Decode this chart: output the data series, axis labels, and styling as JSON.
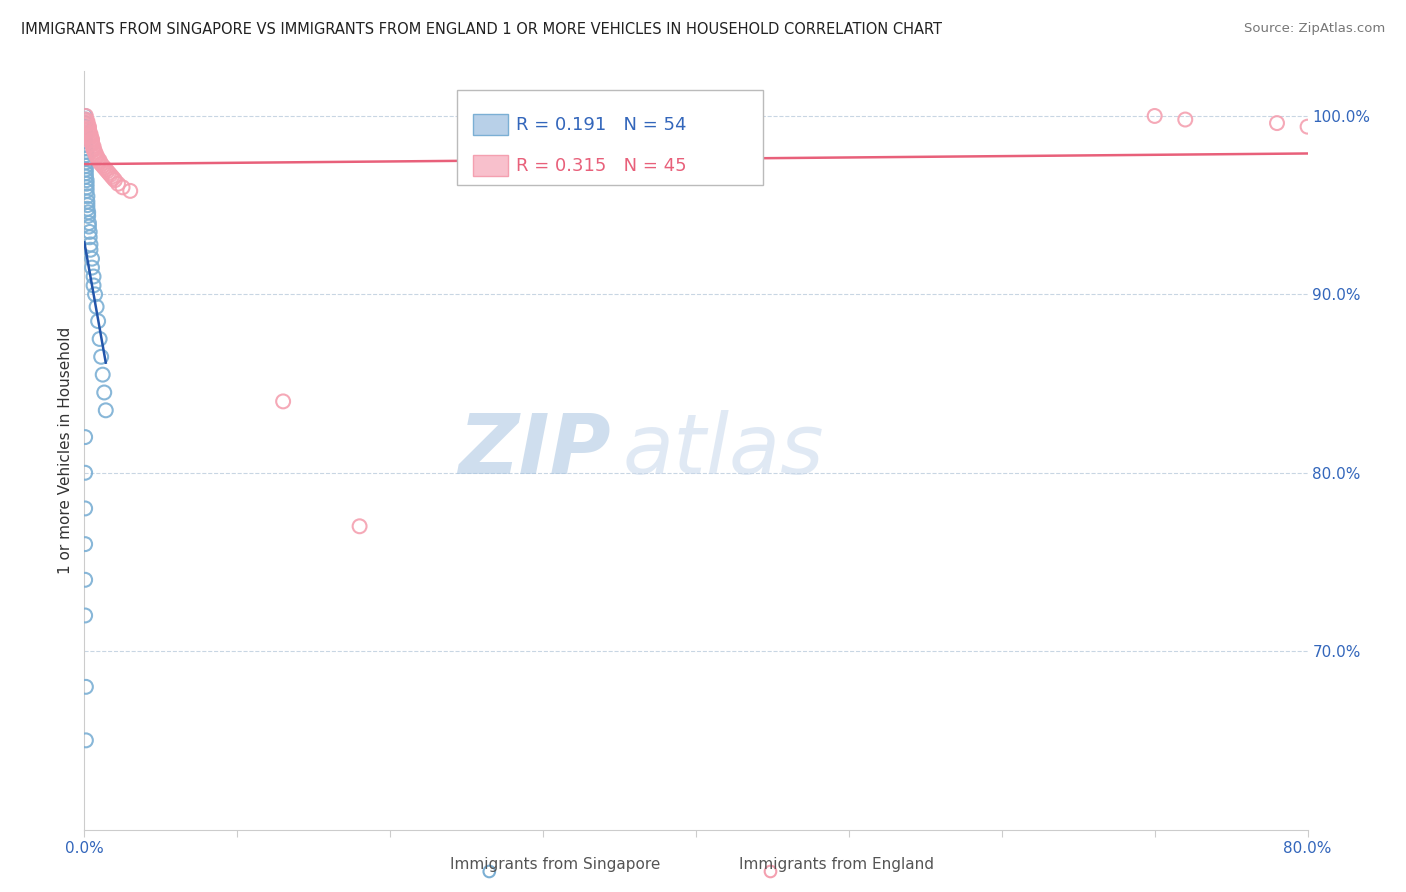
{
  "title": "IMMIGRANTS FROM SINGAPORE VS IMMIGRANTS FROM ENGLAND 1 OR MORE VEHICLES IN HOUSEHOLD CORRELATION CHART",
  "source": "Source: ZipAtlas.com",
  "ylabel": "1 or more Vehicles in Household",
  "legend_label_1": "Immigrants from Singapore",
  "legend_label_2": "Immigrants from England",
  "R1": 0.191,
  "N1": 54,
  "R2": 0.315,
  "N2": 45,
  "color1": "#7BAFD4",
  "color2": "#F4A0B0",
  "trendline1_color": "#2255AA",
  "trendline2_color": "#E8607A",
  "xlim": [
    0.0,
    0.8
  ],
  "ylim": [
    0.6,
    1.025
  ],
  "y_ticks_right": [
    0.7,
    0.8,
    0.9,
    1.0
  ],
  "background_color": "#ffffff",
  "watermark_zip": "ZIP",
  "watermark_atlas": "atlas",
  "singapore_x": [
    0.0005,
    0.0005,
    0.0005,
    0.0005,
    0.0005,
    0.0005,
    0.0005,
    0.0005,
    0.0005,
    0.0005,
    0.001,
    0.001,
    0.001,
    0.001,
    0.001,
    0.001,
    0.001,
    0.001,
    0.0015,
    0.0015,
    0.0015,
    0.0015,
    0.002,
    0.002,
    0.002,
    0.002,
    0.0025,
    0.0025,
    0.003,
    0.003,
    0.0035,
    0.0035,
    0.004,
    0.004,
    0.005,
    0.005,
    0.006,
    0.006,
    0.007,
    0.008,
    0.009,
    0.01,
    0.011,
    0.012,
    0.013,
    0.014,
    0.0005,
    0.0005,
    0.0005,
    0.0005,
    0.0005,
    0.0005,
    0.001,
    0.001
  ],
  "singapore_y": [
    1.0,
    0.998,
    0.996,
    0.994,
    0.992,
    0.99,
    0.988,
    0.986,
    0.984,
    0.982,
    0.98,
    0.978,
    0.976,
    0.974,
    0.972,
    0.97,
    0.968,
    0.966,
    0.964,
    0.962,
    0.96,
    0.958,
    0.955,
    0.952,
    0.95,
    0.948,
    0.946,
    0.944,
    0.94,
    0.938,
    0.935,
    0.932,
    0.928,
    0.925,
    0.92,
    0.915,
    0.91,
    0.905,
    0.9,
    0.893,
    0.885,
    0.875,
    0.865,
    0.855,
    0.845,
    0.835,
    0.82,
    0.8,
    0.78,
    0.76,
    0.74,
    0.72,
    0.68,
    0.65
  ],
  "england_x": [
    0.001,
    0.001,
    0.002,
    0.002,
    0.002,
    0.003,
    0.003,
    0.003,
    0.003,
    0.004,
    0.004,
    0.004,
    0.005,
    0.005,
    0.005,
    0.005,
    0.006,
    0.006,
    0.006,
    0.007,
    0.007,
    0.008,
    0.008,
    0.009,
    0.01,
    0.01,
    0.011,
    0.012,
    0.013,
    0.014,
    0.015,
    0.016,
    0.017,
    0.018,
    0.019,
    0.02,
    0.022,
    0.025,
    0.03,
    0.13,
    0.18,
    0.7,
    0.72,
    0.78,
    0.8
  ],
  "england_y": [
    1.0,
    0.998,
    0.997,
    0.996,
    0.995,
    0.994,
    0.993,
    0.992,
    0.991,
    0.99,
    0.989,
    0.988,
    0.987,
    0.986,
    0.985,
    0.984,
    0.983,
    0.982,
    0.981,
    0.98,
    0.979,
    0.978,
    0.977,
    0.976,
    0.975,
    0.974,
    0.973,
    0.972,
    0.971,
    0.97,
    0.969,
    0.968,
    0.967,
    0.966,
    0.965,
    0.964,
    0.962,
    0.96,
    0.958,
    0.84,
    0.77,
    1.0,
    0.998,
    0.996,
    0.994
  ]
}
